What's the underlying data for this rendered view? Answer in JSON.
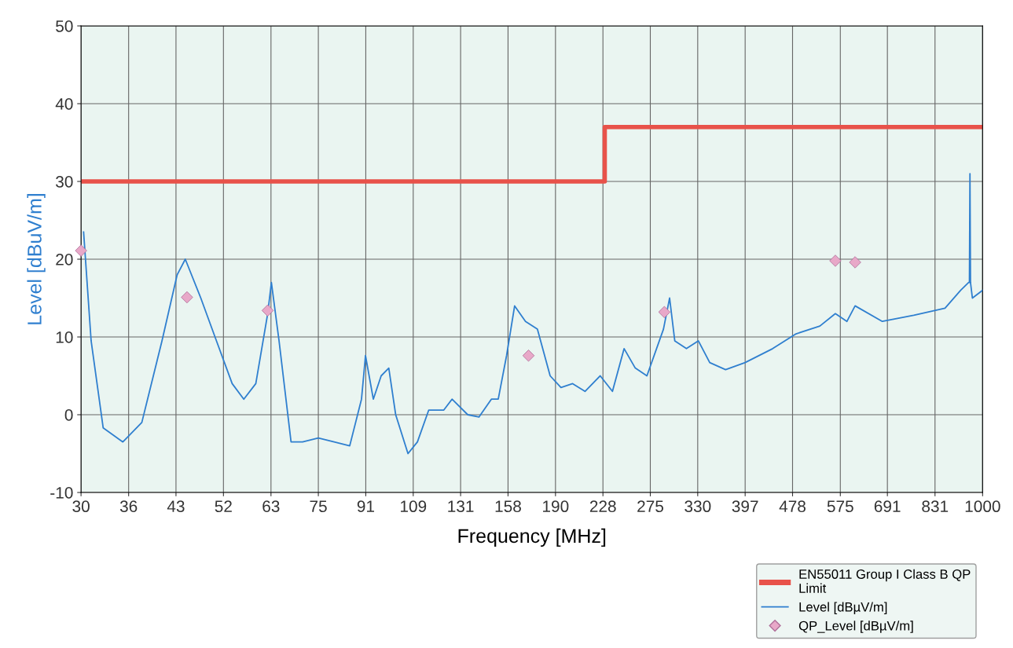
{
  "chart_data": {
    "type": "line",
    "xlabel": "Frequency [MHz]",
    "ylabel": "Level [dBuV/m]",
    "log": "x",
    "xlim": [
      30,
      1000
    ],
    "ylim": [
      -10,
      50
    ],
    "xticks": [
      30,
      {
        "value": 36.1,
        "label": "36"
      },
      {
        "value": 43.4,
        "label": "43"
      },
      {
        "value": 52.2,
        "label": "52"
      },
      {
        "value": 62.8,
        "label": "63"
      },
      {
        "value": 75.5,
        "label": "75"
      },
      {
        "value": 90.8,
        "label": "91"
      },
      {
        "value": 109.2,
        "label": "109"
      },
      {
        "value": 131.3,
        "label": "131"
      },
      {
        "value": 157.9,
        "label": "158"
      },
      {
        "value": 189.9,
        "label": "190"
      },
      {
        "value": 228.4,
        "label": "228"
      },
      {
        "value": 274.6,
        "label": "275"
      },
      {
        "value": 330.2,
        "label": "330"
      },
      {
        "value": 397.1,
        "label": "397"
      },
      {
        "value": 477.5,
        "label": "478"
      },
      {
        "value": 575,
        "label": "575"
      },
      {
        "value": 690.5,
        "label": "691"
      },
      {
        "value": 831,
        "label": "831"
      },
      1000
    ],
    "yticks": [
      -10,
      0,
      10,
      20,
      30,
      40,
      50
    ],
    "grid": true,
    "legend": "bottom right",
    "series": [
      {
        "name": "EN55011 Group I Class B QP\nLimit",
        "type": "step",
        "color": "#e8524a",
        "x": [
          30,
          230,
          1000
        ],
        "values": [
          30,
          37,
          37
        ]
      },
      {
        "name": "Level [dBµV/m]",
        "color": "#2f7fcf",
        "marker": "none",
        "x": [
          30.3,
          31.2,
          32.7,
          35.3,
          38.0,
          41.1,
          43.6,
          45.0,
          47.8,
          50.8,
          54.0,
          56.5,
          59.2,
          62.0,
          62.9,
          64.8,
          67.9,
          71.0,
          75.5,
          80.3,
          85.3,
          89.3,
          90.7,
          93.5,
          96.4,
          99.3,
          102,
          107,
          111,
          116,
          123,
          127,
          135,
          141,
          148,
          152,
          157,
          162,
          169,
          177,
          186,
          194,
          203,
          213,
          226,
          237,
          248,
          259,
          271,
          289,
          296,
          302,
          316,
          331,
          346,
          368,
          397,
          442,
          484,
          531,
          564,
          590,
          609,
          677,
          765,
          864,
          918,
          947,
          950,
          952,
          954,
          961,
          1000
        ],
        "values": [
          23.5,
          9.5,
          -1.7,
          -3.5,
          -1,
          9.5,
          18,
          20,
          15,
          9.5,
          4,
          2,
          4,
          13,
          17,
          9.5,
          -3.5,
          -3.5,
          -3,
          -3.5,
          -4,
          2,
          7.6,
          2,
          5,
          6,
          0,
          -5,
          -3.5,
          0.6,
          0.6,
          2,
          0,
          -0.3,
          2,
          2,
          7.6,
          14,
          12,
          11,
          5,
          3.5,
          4,
          3,
          5,
          3,
          8.5,
          6,
          5,
          11,
          15,
          9.5,
          8.5,
          9.5,
          6.7,
          5.8,
          6.7,
          8.5,
          10.4,
          11.4,
          13,
          12,
          14,
          12,
          12.8,
          13.7,
          16,
          17,
          17,
          31,
          17,
          15,
          16
        ]
      },
      {
        "name": "QP_Level [dBµV/m]",
        "type": "scatter",
        "color": "#e8a8c8",
        "marker": "diamond",
        "x": [
          30,
          45.3,
          62,
          171,
          290,
          564,
          609
        ],
        "values": [
          21.1,
          15.1,
          13.4,
          7.6,
          13.2,
          19.8,
          19.6
        ]
      }
    ]
  }
}
